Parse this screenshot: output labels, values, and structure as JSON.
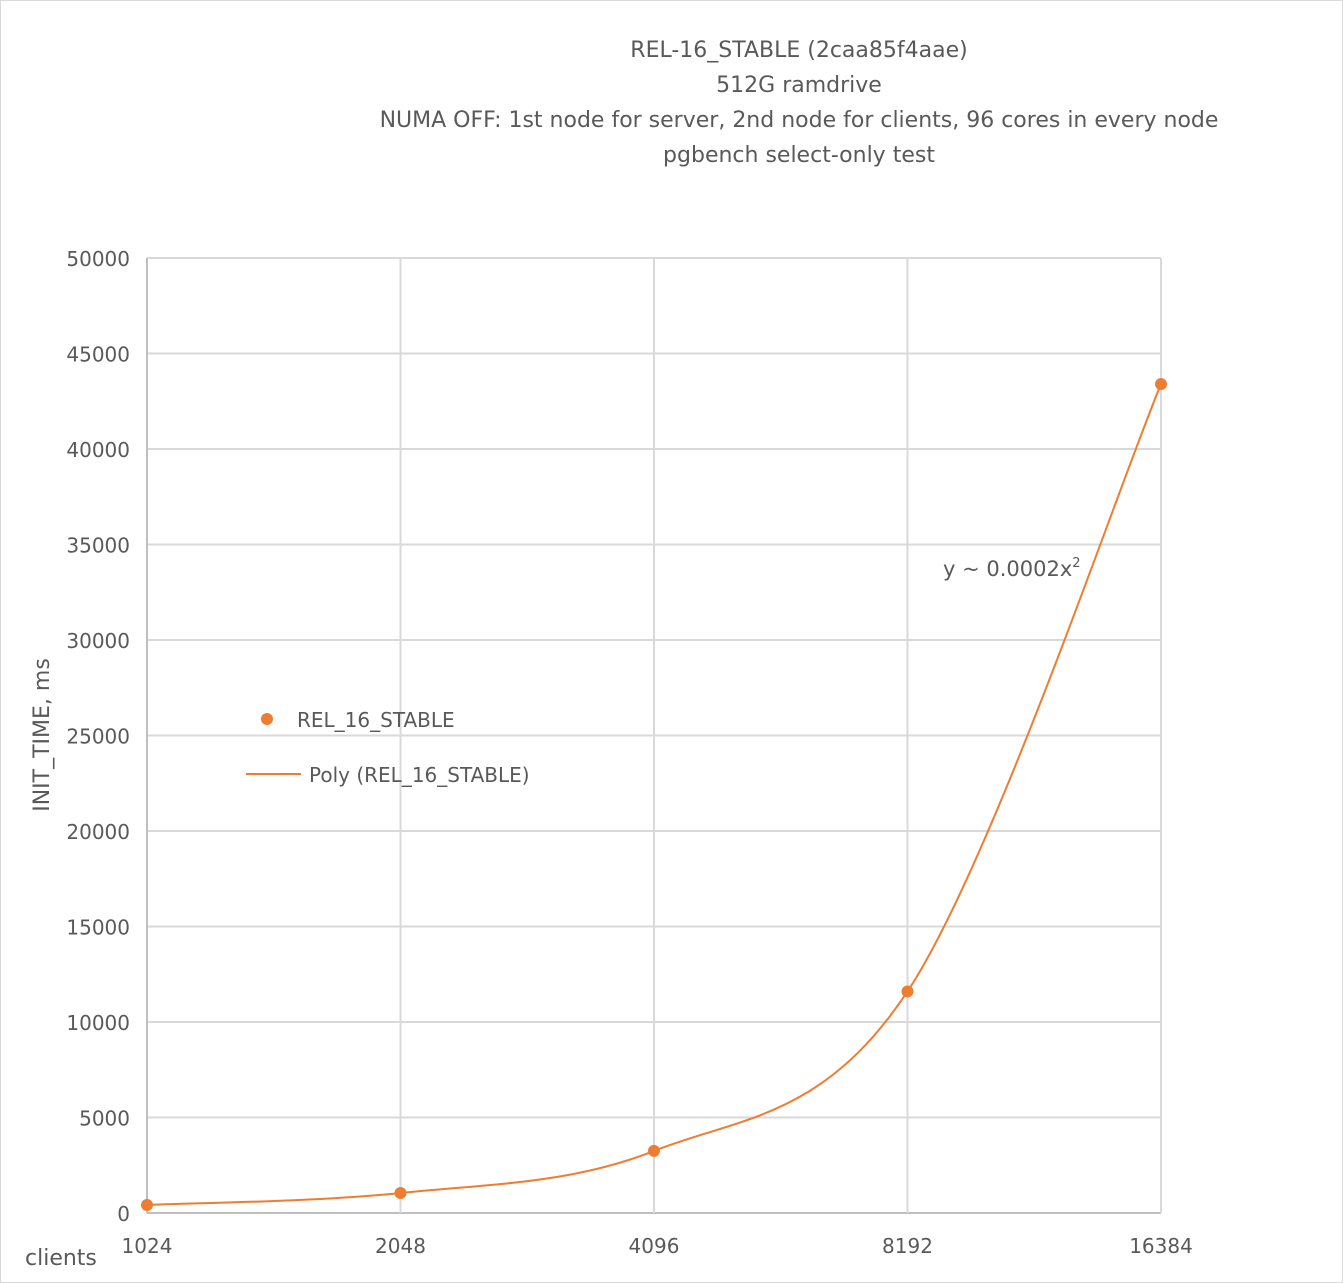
{
  "chart_data": {
    "type": "scatter",
    "title_lines": [
      "REL-16_STABLE (2caa85f4aae)",
      "512G ramdrive",
      "NUMA OFF: 1st node for server, 2nd node for clients, 96 cores in every node",
      "pgbench select-only test"
    ],
    "xlabel": "clients",
    "ylabel": "INIT_TIME, ms",
    "x": [
      1024,
      2048,
      4096,
      8192,
      16384
    ],
    "x_tick_labels": [
      "1024",
      "2048",
      "4096",
      "8192",
      "16384"
    ],
    "x_scale": "log2",
    "ylim": [
      0,
      50000
    ],
    "y_ticks": [
      0,
      5000,
      10000,
      15000,
      20000,
      25000,
      30000,
      35000,
      40000,
      45000,
      50000
    ],
    "grid": true,
    "series": [
      {
        "name": "REL_16_STABLE",
        "values": [
          420,
          1050,
          3250,
          11600,
          43400
        ],
        "color": "#ed7d31",
        "kind": "markers"
      },
      {
        "name": "Poly (REL_16_STABLE)",
        "color": "#ed7d31",
        "kind": "trendline"
      }
    ],
    "legend_position": "left-middle",
    "annotation": {
      "text": "y ~ 0.0002x",
      "superscript": "2"
    }
  }
}
